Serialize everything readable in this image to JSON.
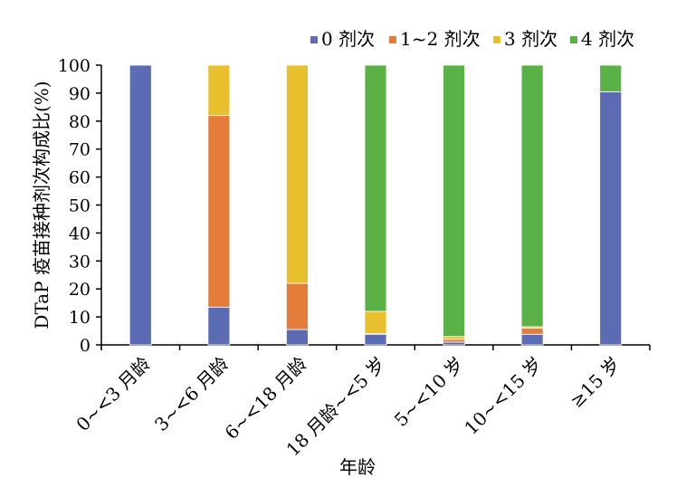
{
  "chart_data": {
    "type": "bar",
    "stacked": true,
    "title": "",
    "xlabel": "年龄",
    "ylabel": "DTaP 疫苗接种剂次构成比(%)",
    "ylim": [
      0,
      100
    ],
    "yticks": [
      "0",
      "10",
      "20",
      "30",
      "40",
      "50",
      "60",
      "70",
      "80",
      "90",
      "100"
    ],
    "legend_position": "top-right",
    "categories": [
      "0~<3 月龄",
      "3~<6 月龄",
      "6~<18 月龄",
      "18 月龄~<5 岁",
      "5~<10 岁",
      "10~<15 岁",
      "≥15 岁"
    ],
    "series": [
      {
        "name": "0 剂次",
        "color": "#5b6cb5",
        "values": [
          100,
          13.5,
          5.5,
          3.8,
          1.0,
          3.8,
          90.5
        ]
      },
      {
        "name": "1~2 剂次",
        "color": "#e47c3a",
        "values": [
          0,
          68.5,
          16.5,
          0.2,
          1.0,
          2.2,
          0
        ]
      },
      {
        "name": "3 剂次",
        "color": "#e8bf2c",
        "values": [
          0,
          18.0,
          78.0,
          8.0,
          1.0,
          0.5,
          0
        ]
      },
      {
        "name": "4 剂次",
        "color": "#5ab146",
        "values": [
          0,
          0,
          0,
          88.0,
          97.0,
          93.5,
          9.5
        ]
      }
    ]
  }
}
